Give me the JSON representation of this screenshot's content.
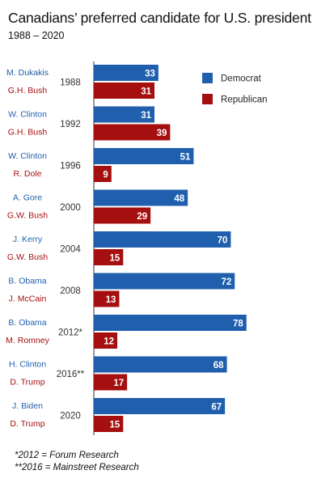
{
  "title": "Canadians’ preferred candidate for U.S. president",
  "subtitle": "1988 – 2020",
  "colors": {
    "democrat": "#1f5fae",
    "republican": "#a50f10"
  },
  "legend": [
    {
      "label": "Democrat",
      "color": "#1f5fae"
    },
    {
      "label": "Republican",
      "color": "#a50f10"
    }
  ],
  "notes": [
    "*2012 = Forum Research",
    "**2016  = Mainstreet Research"
  ],
  "chart_data": {
    "type": "bar",
    "orientation": "horizontal",
    "categories": [
      "1988",
      "1992",
      "1996",
      "2000",
      "2004",
      "2008",
      "2012*",
      "2016**",
      "2020"
    ],
    "candidates": {
      "democrat": [
        "M. Dukakis",
        "W. Clinton",
        "W. Clinton",
        "A. Gore",
        "J. Kerry",
        "B. Obama",
        "B. Obama",
        "H. Clinton",
        "J. Biden"
      ],
      "republican": [
        "G.H. Bush",
        "G.H. Bush",
        "R. Dole",
        "G.W. Bush",
        "G.W. Bush",
        "J. McCain",
        "M. Romney",
        "D. Trump",
        "D. Trump"
      ]
    },
    "series": [
      {
        "name": "Democrat",
        "values": [
          33,
          31,
          51,
          48,
          70,
          72,
          78,
          68,
          67
        ]
      },
      {
        "name": "Republican",
        "values": [
          31,
          39,
          9,
          29,
          15,
          13,
          12,
          17,
          15
        ]
      }
    ],
    "legend_position": "top-right",
    "grid": false
  }
}
